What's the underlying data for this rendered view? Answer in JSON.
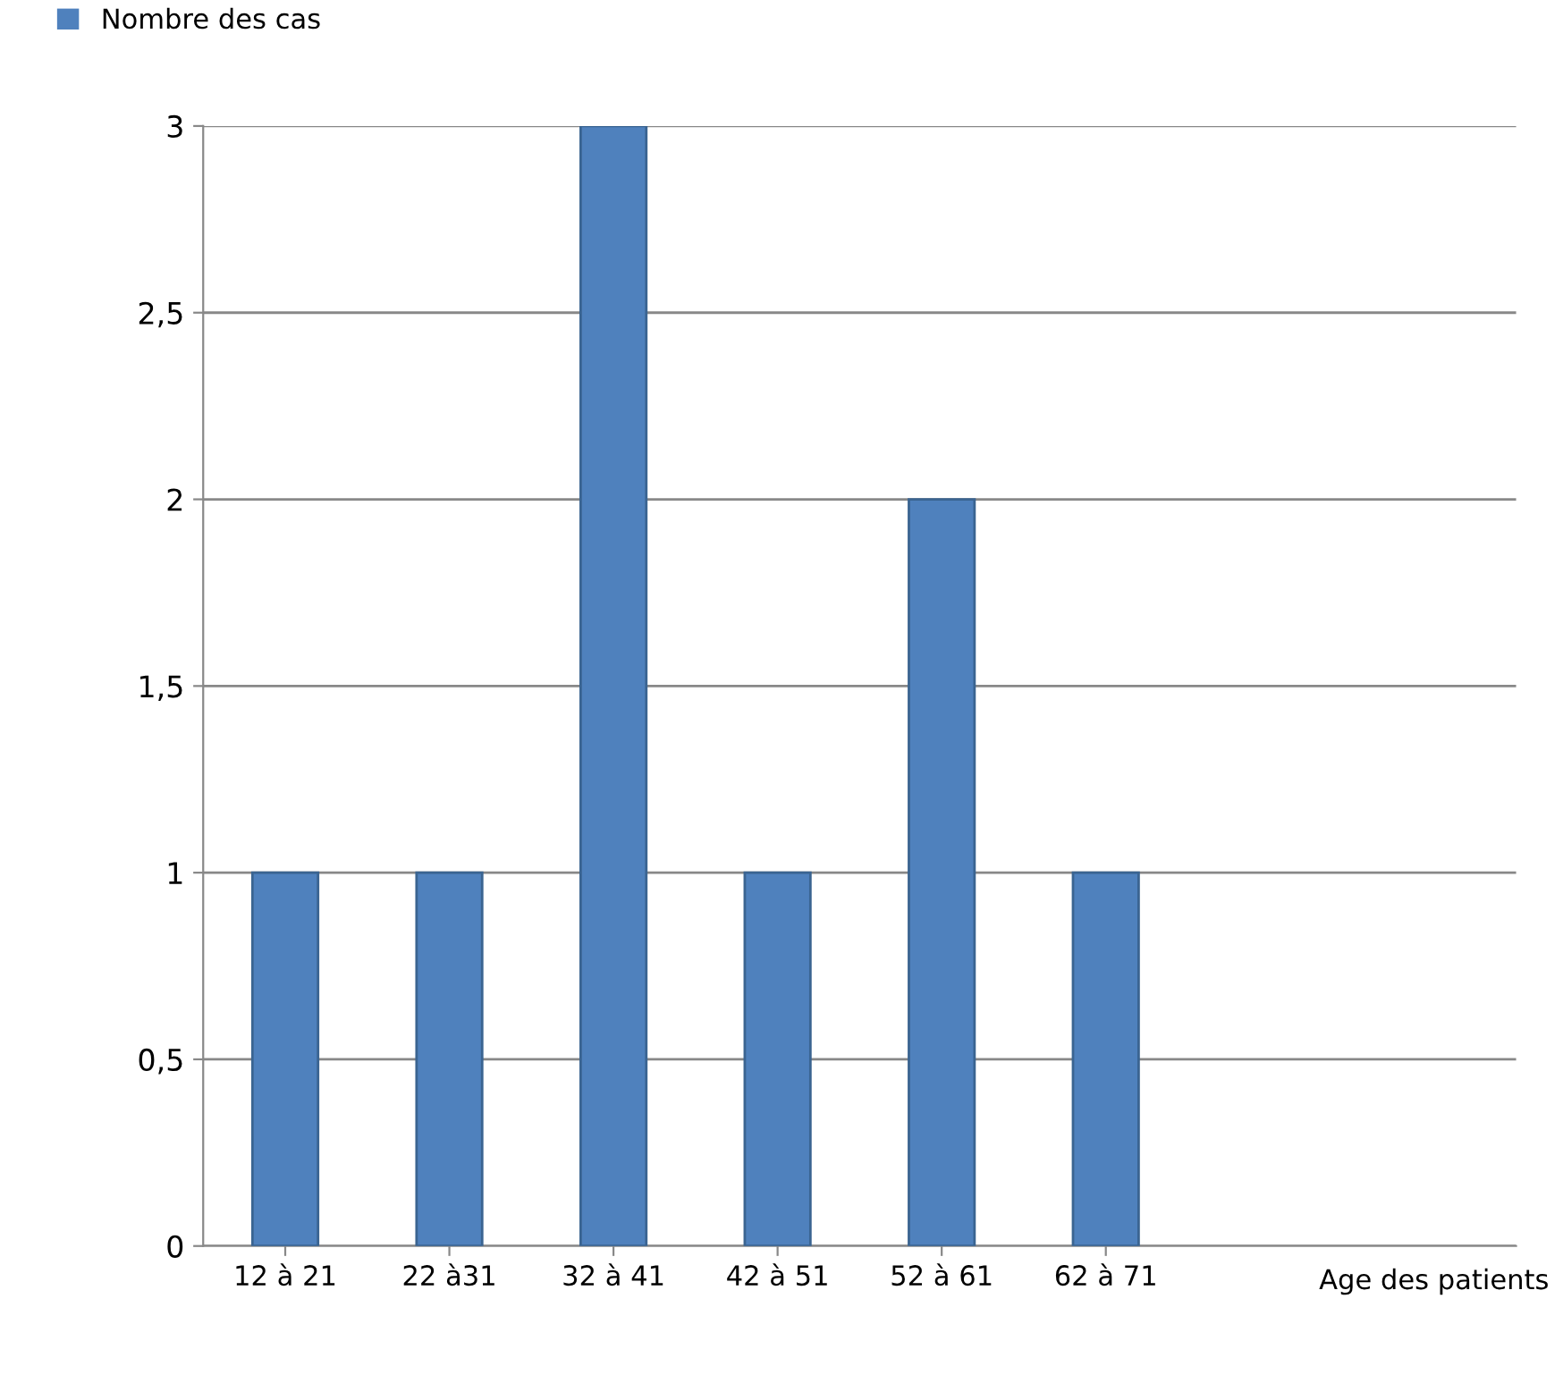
{
  "chart_data": {
    "type": "bar",
    "xlabel": "Age des patients",
    "categories": [
      "12 à 21",
      "22 à31",
      "32 à 41",
      "42 à 51",
      "52 à 61",
      "62 à 71"
    ],
    "series": [
      {
        "name": "Nombre des cas",
        "color": "#4f81bd",
        "values": [
          1,
          1,
          3,
          1,
          2,
          1
        ]
      }
    ],
    "ylim": [
      0,
      3
    ],
    "yticks": [
      0,
      {
        "value": 0.5,
        "label": "0,5"
      },
      1,
      {
        "value": 1.5,
        "label": "1,5"
      },
      2,
      {
        "value": 2.5,
        "label": "2,5"
      },
      3
    ],
    "grid": "y",
    "legend": "top left"
  }
}
